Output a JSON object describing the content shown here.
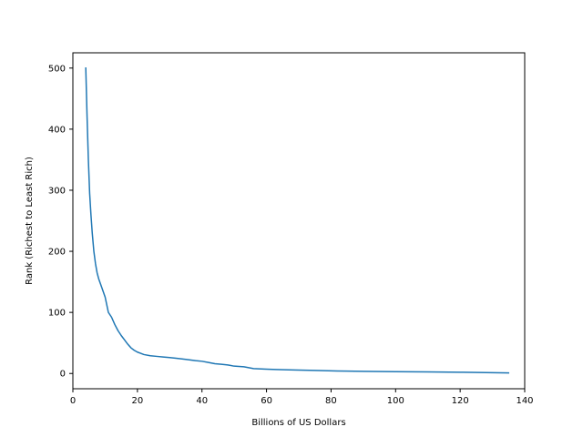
{
  "chart_data": {
    "type": "line",
    "title": "",
    "xlabel": "Billions of US Dollars",
    "ylabel": "Rank (Richest to Least Rich)",
    "xlim": [
      0,
      140
    ],
    "ylim": [
      -25,
      525
    ],
    "xticks": [
      0,
      20,
      40,
      60,
      80,
      100,
      120,
      140
    ],
    "yticks": [
      0,
      100,
      200,
      300,
      400,
      500
    ],
    "grid": false,
    "legend": "none",
    "line_color": "#1f77b4",
    "series": [
      {
        "x": [
          4,
          4.4,
          4.8,
          5.2,
          5.6,
          6,
          6.5,
          7,
          7.5,
          8,
          9,
          10,
          11,
          12,
          13,
          14,
          15,
          16,
          17,
          18,
          19,
          20,
          21,
          22,
          24,
          26,
          28,
          30,
          32,
          35,
          38,
          40,
          42,
          44,
          46,
          48,
          50,
          53,
          56,
          60,
          63,
          67,
          70,
          75,
          82,
          90,
          100,
          110,
          120,
          128,
          135
        ],
        "y": [
          500,
          420,
          350,
          295,
          260,
          230,
          200,
          180,
          165,
          155,
          140,
          125,
          100,
          92,
          80,
          70,
          62,
          55,
          48,
          42,
          38,
          35,
          33,
          31,
          29,
          28,
          27,
          26,
          25,
          23,
          21,
          20,
          18,
          16,
          15,
          14,
          12,
          11,
          8,
          7,
          6.5,
          6,
          5.5,
          5,
          4,
          3.5,
          3,
          2.5,
          2,
          1.5,
          1
        ]
      }
    ]
  }
}
